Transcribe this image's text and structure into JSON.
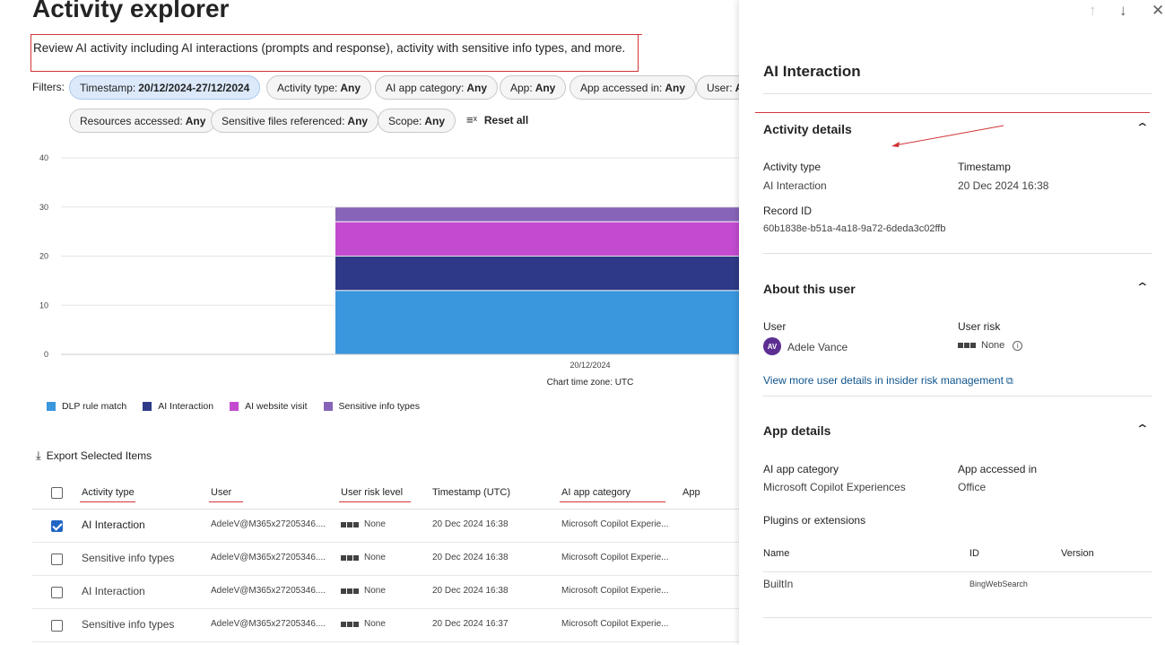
{
  "header": {
    "title": "Activity explorer",
    "description": "Review AI activity including AI interactions (prompts and response), activity with sensitive info types, and more."
  },
  "filters": {
    "label": "Filters:",
    "chips": [
      {
        "key": "Timestamp:",
        "value": "20/12/2024-27/12/2024"
      },
      {
        "key": "Activity type:",
        "value": "Any"
      },
      {
        "key": "AI app category:",
        "value": "Any"
      },
      {
        "key": "App:",
        "value": "Any"
      },
      {
        "key": "App accessed in:",
        "value": "Any"
      },
      {
        "key": "User:",
        "value": "A"
      },
      {
        "key": "Resources accessed:",
        "value": "Any"
      },
      {
        "key": "Sensitive files referenced:",
        "value": "Any"
      },
      {
        "key": "Scope:",
        "value": "Any"
      }
    ],
    "reset_label": "Reset all"
  },
  "chart_data": {
    "type": "bar",
    "stacked": true,
    "categories": [
      "20/12/2024"
    ],
    "series": [
      {
        "name": "DLP rule match",
        "values": [
          13
        ],
        "color": "#3a96dd"
      },
      {
        "name": "AI Interaction",
        "values": [
          7
        ],
        "color": "#2e3a87"
      },
      {
        "name": "AI website visit",
        "values": [
          7
        ],
        "color": "#c24bcf"
      },
      {
        "name": "Sensitive info types",
        "values": [
          3
        ],
        "color": "#8764b8"
      }
    ],
    "yticks": [
      "0",
      "10",
      "20",
      "30",
      "40"
    ],
    "ylim": [
      0,
      40
    ],
    "xlabel": "Chart time zone: UTC",
    "grid": true,
    "legend": "bottom-left"
  },
  "export_label": "Export Selected Items",
  "table": {
    "columns": [
      "Activity type",
      "User",
      "User risk level",
      "Timestamp (UTC)",
      "AI app category",
      "App"
    ],
    "rows": [
      {
        "activity": "AI Interaction",
        "user": "AdeleV@M365x27205346....",
        "risk": "None",
        "timestamp": "20 Dec 2024 16:38",
        "category": "Microsoft Copilot Experie...",
        "selected": true
      },
      {
        "activity": "Sensitive info types",
        "user": "AdeleV@M365x27205346....",
        "risk": "None",
        "timestamp": "20 Dec 2024 16:38",
        "category": "Microsoft Copilot Experie...",
        "selected": false
      },
      {
        "activity": "AI Interaction",
        "user": "AdeleV@M365x27205346....",
        "risk": "None",
        "timestamp": "20 Dec 2024 16:38",
        "category": "Microsoft Copilot Experie...",
        "selected": false
      },
      {
        "activity": "Sensitive info types",
        "user": "AdeleV@M365x27205346....",
        "risk": "None",
        "timestamp": "20 Dec 2024 16:37",
        "category": "Microsoft Copilot Experie...",
        "selected": false
      }
    ]
  },
  "panel": {
    "title": "AI Interaction",
    "activity_details": {
      "heading": "Activity details",
      "activity_type_label": "Activity type",
      "activity_type_value": "AI Interaction",
      "timestamp_label": "Timestamp",
      "timestamp_value": "20 Dec 2024 16:38",
      "record_id_label": "Record ID",
      "record_id_value": "60b1838e-b51a-4a18-9a72-6deda3c02ffb"
    },
    "about_user": {
      "heading": "About this user",
      "user_label": "User",
      "user_initials": "AV",
      "user_name": "Adele Vance",
      "risk_label": "User risk",
      "risk_value": "None",
      "link": "View more user details in insider risk management"
    },
    "app_details": {
      "heading": "App details",
      "category_label": "AI app category",
      "category_value": "Microsoft Copilot Experiences",
      "accessed_label": "App accessed in",
      "accessed_value": "Office",
      "plugins_label": "Plugins or extensions",
      "plugin_cols": [
        "Name",
        "ID",
        "Version"
      ],
      "plugin_name": "BuiltIn",
      "plugin_id": "BingWebSearch"
    }
  }
}
